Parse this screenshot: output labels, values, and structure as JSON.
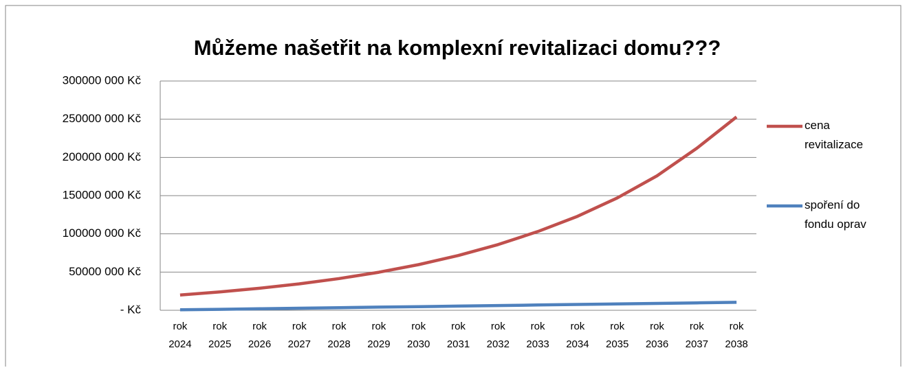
{
  "chart_data": {
    "type": "line",
    "title": "Můžeme našetřit na komplexní revitalizaci domu???",
    "categories": [
      "rok 2024",
      "rok 2025",
      "rok 2026",
      "rok 2027",
      "rok 2028",
      "rok 2029",
      "rok 2030",
      "rok 2031",
      "rok 2032",
      "rok 2033",
      "rok 2034",
      "rok 2035",
      "rok 2036",
      "rok 2037",
      "rok 2038"
    ],
    "series": [
      {
        "name": "cena revitalizace",
        "color": "#c0504d",
        "values": [
          20000000,
          24000000,
          28800000,
          34600000,
          41500000,
          49800000,
          59700000,
          71700000,
          86000000,
          103000000,
          123000000,
          147000000,
          176000000,
          212000000,
          253000000
        ]
      },
      {
        "name": "spoření do fondu oprav",
        "color": "#4f81bd",
        "values": [
          600000,
          1300000,
          2000000,
          2700000,
          3400000,
          4100000,
          4800000,
          5500000,
          6200000,
          6900000,
          7600000,
          8300000,
          9000000,
          9700000,
          10400000
        ]
      }
    ],
    "ylim": [
      0,
      300000000
    ],
    "yticks": [
      {
        "value": 0,
        "label": "-  Kč"
      },
      {
        "value": 50000000,
        "label": "50000 000 Kč"
      },
      {
        "value": 100000000,
        "label": "100000 000 Kč"
      },
      {
        "value": 150000000,
        "label": "150000 000 Kč"
      },
      {
        "value": 200000000,
        "label": "200000 000 Kč"
      },
      {
        "value": 250000000,
        "label": "250000 000 Kč"
      },
      {
        "value": 300000000,
        "label": "300000 000 Kč"
      }
    ],
    "grid": true
  }
}
